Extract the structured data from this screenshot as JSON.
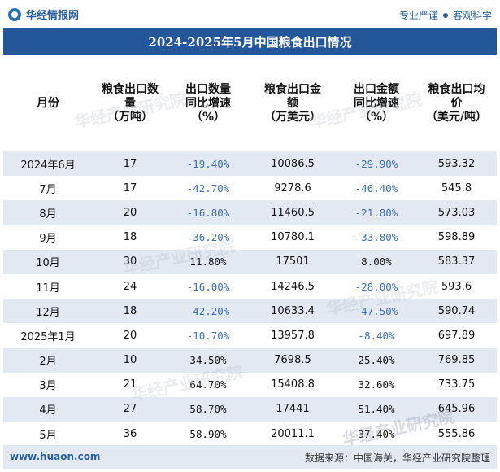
{
  "brand": {
    "name": "华经情报网",
    "slogan_a": "专业严谨",
    "slogan_b": "客观科学",
    "watermark": "华经产业研究院"
  },
  "title": "2024-2025年5月中国粮食出口情况",
  "columns": [
    "月份",
    "粮食出口数\n量\n（万吨）",
    "出口数量\n同比增速\n（%）",
    "粮食出口金\n额\n（万美元）",
    "出口金额\n同比增速\n（%）",
    "粮食出口均\n价\n（美元/吨）"
  ],
  "rows": [
    {
      "month": "2024年6月",
      "qty": "17",
      "qty_yoy": "-19.40%",
      "amount": "10086.5",
      "amount_yoy": "-29.90%",
      "price": "593.32"
    },
    {
      "month": "7月",
      "qty": "17",
      "qty_yoy": "-42.70%",
      "amount": "9278.6",
      "amount_yoy": "-46.40%",
      "price": "545.8"
    },
    {
      "month": "8月",
      "qty": "20",
      "qty_yoy": "-16.80%",
      "amount": "11460.5",
      "amount_yoy": "-21.80%",
      "price": "573.03"
    },
    {
      "month": "9月",
      "qty": "18",
      "qty_yoy": "-36.20%",
      "amount": "10780.1",
      "amount_yoy": "-33.80%",
      "price": "598.89"
    },
    {
      "month": "10月",
      "qty": "30",
      "qty_yoy": "11.80%",
      "amount": "17501",
      "amount_yoy": "8.00%",
      "price": "583.37"
    },
    {
      "month": "11月",
      "qty": "24",
      "qty_yoy": "-16.00%",
      "amount": "14246.5",
      "amount_yoy": "-28.00%",
      "price": "593.6"
    },
    {
      "month": "12月",
      "qty": "18",
      "qty_yoy": "-42.20%",
      "amount": "10633.4",
      "amount_yoy": "-47.50%",
      "price": "590.74"
    },
    {
      "month": "2025年1月",
      "qty": "20",
      "qty_yoy": "-10.70%",
      "amount": "13957.8",
      "amount_yoy": "-8.40%",
      "price": "697.89"
    },
    {
      "month": "2月",
      "qty": "10",
      "qty_yoy": "34.50%",
      "amount": "7698.5",
      "amount_yoy": "25.40%",
      "price": "769.85"
    },
    {
      "month": "3月",
      "qty": "21",
      "qty_yoy": "64.70%",
      "amount": "15408.8",
      "amount_yoy": "32.60%",
      "price": "733.75"
    },
    {
      "month": "4月",
      "qty": "27",
      "qty_yoy": "58.70%",
      "amount": "17441",
      "amount_yoy": "51.40%",
      "price": "645.96"
    },
    {
      "month": "5月",
      "qty": "36",
      "qty_yoy": "58.90%",
      "amount": "20011.1",
      "amount_yoy": "37.40%",
      "price": "555.86"
    }
  ],
  "footer": {
    "url": "www.huaon.com",
    "source": "数据来源：中国海关，华经产业研究院整理"
  },
  "colors": {
    "title_bg": "#24569a",
    "stripe": "#e3e9f2",
    "negative": "#3b6fb0"
  }
}
